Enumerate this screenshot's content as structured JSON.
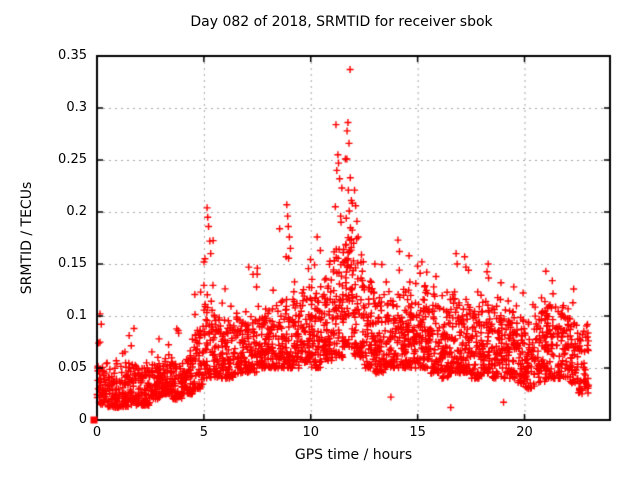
{
  "chart_data": {
    "type": "scatter",
    "title": "Day 082 of 2018, SRMTID for receiver sbok",
    "xlabel": "GPS time / hours",
    "ylabel": "SRMTID / TECUs",
    "xlim": [
      0,
      24
    ],
    "ylim": [
      0,
      0.35
    ],
    "xticks": [
      {
        "v": 0,
        "label": "0"
      },
      {
        "v": 5,
        "label": "5"
      },
      {
        "v": 10,
        "label": "10"
      },
      {
        "v": 15,
        "label": "15"
      },
      {
        "v": 20,
        "label": "20"
      }
    ],
    "yticks": [
      {
        "v": 0,
        "label": "0"
      },
      {
        "v": 0.05,
        "label": "0.05"
      },
      {
        "v": 0.1,
        "label": "0.1"
      },
      {
        "v": 0.15,
        "label": "0.15"
      },
      {
        "v": 0.2,
        "label": "0.2"
      },
      {
        "v": 0.25,
        "label": "0.25"
      },
      {
        "v": 0.3,
        "label": "0.3"
      },
      {
        "v": 0.35,
        "label": "0.35"
      }
    ],
    "grid": true,
    "legend": false,
    "colors": {
      "marker": "#ff0000",
      "grid": "#a8a8a8",
      "axis": "#000000",
      "background": "#ffffff",
      "text": "#000000"
    },
    "marker": {
      "shape": "plus",
      "size": 7,
      "line_width": 1.4
    },
    "origin_marker": {
      "shape": "filled-square",
      "x": 0,
      "y": 0,
      "size": 7
    },
    "max_point": [
      11.84,
      0.337
    ],
    "sampling_note": "dense 30s-cadence scatter approximated by per-half-hour bands [hour_start,count,band_lo,band_hi,tail_max] plus explicit outlier points",
    "render": {
      "seed": 20180082,
      "bin_width": 0.5,
      "skew": 1.6,
      "tail_points": 2
    },
    "bins": [
      [
        0.0,
        52,
        0.015,
        0.055,
        0.1
      ],
      [
        0.5,
        52,
        0.012,
        0.05,
        0.072
      ],
      [
        1.0,
        54,
        0.012,
        0.055,
        0.08
      ],
      [
        1.5,
        54,
        0.014,
        0.055,
        0.09
      ],
      [
        2.0,
        52,
        0.014,
        0.05,
        0.075
      ],
      [
        2.5,
        52,
        0.02,
        0.055,
        0.08
      ],
      [
        3.0,
        54,
        0.025,
        0.06,
        0.082
      ],
      [
        3.5,
        52,
        0.02,
        0.055,
        0.09
      ],
      [
        4.0,
        54,
        0.025,
        0.062,
        0.085
      ],
      [
        4.5,
        56,
        0.03,
        0.09,
        0.125
      ],
      [
        5.0,
        58,
        0.04,
        0.13,
        0.185
      ],
      [
        5.5,
        54,
        0.04,
        0.1,
        0.13
      ],
      [
        6.0,
        54,
        0.04,
        0.095,
        0.135
      ],
      [
        6.5,
        54,
        0.045,
        0.1,
        0.12
      ],
      [
        7.0,
        54,
        0.045,
        0.1,
        0.145
      ],
      [
        7.5,
        54,
        0.05,
        0.105,
        0.148
      ],
      [
        8.0,
        54,
        0.05,
        0.11,
        0.13
      ],
      [
        8.5,
        58,
        0.05,
        0.12,
        0.185
      ],
      [
        9.0,
        56,
        0.05,
        0.12,
        0.16
      ],
      [
        9.5,
        58,
        0.055,
        0.13,
        0.165
      ],
      [
        10.0,
        58,
        0.05,
        0.13,
        0.18
      ],
      [
        10.5,
        58,
        0.055,
        0.14,
        0.19
      ],
      [
        11.0,
        62,
        0.06,
        0.17,
        0.255
      ],
      [
        11.5,
        66,
        0.07,
        0.19,
        0.29
      ],
      [
        12.0,
        62,
        0.06,
        0.16,
        0.23
      ],
      [
        12.5,
        58,
        0.05,
        0.13,
        0.175
      ],
      [
        13.0,
        58,
        0.045,
        0.12,
        0.15
      ],
      [
        13.5,
        58,
        0.05,
        0.12,
        0.14
      ],
      [
        14.0,
        58,
        0.05,
        0.125,
        0.165
      ],
      [
        14.5,
        58,
        0.05,
        0.13,
        0.16
      ],
      [
        15.0,
        58,
        0.05,
        0.13,
        0.15
      ],
      [
        15.5,
        58,
        0.045,
        0.12,
        0.14
      ],
      [
        16.0,
        58,
        0.04,
        0.11,
        0.13
      ],
      [
        16.5,
        58,
        0.045,
        0.12,
        0.155
      ],
      [
        17.0,
        58,
        0.045,
        0.115,
        0.15
      ],
      [
        17.5,
        56,
        0.04,
        0.11,
        0.13
      ],
      [
        18.0,
        56,
        0.045,
        0.115,
        0.148
      ],
      [
        18.5,
        56,
        0.04,
        0.11,
        0.135
      ],
      [
        19.0,
        56,
        0.04,
        0.105,
        0.13
      ],
      [
        19.5,
        54,
        0.035,
        0.1,
        0.125
      ],
      [
        20.0,
        54,
        0.03,
        0.095,
        0.115
      ],
      [
        20.5,
        54,
        0.035,
        0.105,
        0.125
      ],
      [
        21.0,
        54,
        0.04,
        0.11,
        0.14
      ],
      [
        21.5,
        54,
        0.04,
        0.105,
        0.135
      ],
      [
        22.0,
        54,
        0.035,
        0.1,
        0.125
      ],
      [
        22.5,
        50,
        0.025,
        0.09,
        0.11
      ]
    ],
    "outliers": [
      [
        0.14,
        0.102
      ],
      [
        0.2,
        0.092
      ],
      [
        1.73,
        0.088
      ],
      [
        2.9,
        0.078
      ],
      [
        3.8,
        0.086
      ],
      [
        4.85,
        0.123
      ],
      [
        5.05,
        0.155
      ],
      [
        5.15,
        0.204
      ],
      [
        5.18,
        0.195
      ],
      [
        5.22,
        0.186
      ],
      [
        5.28,
        0.172
      ],
      [
        5.32,
        0.16
      ],
      [
        7.1,
        0.147
      ],
      [
        7.3,
        0.14
      ],
      [
        7.5,
        0.146
      ],
      [
        8.85,
        0.157
      ],
      [
        8.88,
        0.207
      ],
      [
        8.92,
        0.196
      ],
      [
        8.95,
        0.186
      ],
      [
        9.0,
        0.176
      ],
      [
        9.05,
        0.165
      ],
      [
        10.3,
        0.176
      ],
      [
        10.45,
        0.163
      ],
      [
        11.15,
        0.205
      ],
      [
        11.18,
        0.284
      ],
      [
        11.22,
        0.24
      ],
      [
        11.27,
        0.255
      ],
      [
        11.3,
        0.247
      ],
      [
        11.35,
        0.232
      ],
      [
        11.4,
        0.196
      ],
      [
        11.62,
        0.251
      ],
      [
        11.66,
        0.194
      ],
      [
        11.7,
        0.278
      ],
      [
        11.74,
        0.286
      ],
      [
        11.76,
        0.221
      ],
      [
        11.79,
        0.266
      ],
      [
        11.8,
        0.201
      ],
      [
        11.84,
        0.337
      ],
      [
        11.85,
        0.233
      ],
      [
        11.9,
        0.211
      ],
      [
        12.05,
        0.221
      ],
      [
        12.1,
        0.206
      ],
      [
        12.16,
        0.191
      ],
      [
        12.22,
        0.176
      ],
      [
        13.0,
        0.15
      ],
      [
        13.75,
        0.022
      ],
      [
        14.08,
        0.173
      ],
      [
        14.15,
        0.162
      ],
      [
        14.6,
        0.158
      ],
      [
        15.0,
        0.148
      ],
      [
        15.2,
        0.152
      ],
      [
        15.86,
        0.138
      ],
      [
        16.55,
        0.012
      ],
      [
        16.8,
        0.16
      ],
      [
        16.85,
        0.15
      ],
      [
        17.2,
        0.157
      ],
      [
        17.26,
        0.147
      ],
      [
        18.3,
        0.15
      ],
      [
        18.9,
        0.132
      ],
      [
        19.02,
        0.017
      ],
      [
        19.5,
        0.128
      ],
      [
        21.0,
        0.143
      ],
      [
        21.3,
        0.134
      ],
      [
        22.3,
        0.126
      ]
    ]
  }
}
